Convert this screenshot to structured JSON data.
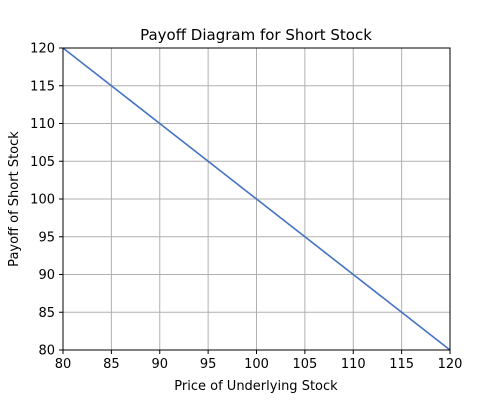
{
  "chart_data": {
    "type": "line",
    "title": "Payoff Diagram for Short Stock",
    "xlabel": "Price of Underlying Stock",
    "ylabel": "Payoff of Short Stock",
    "xlim": [
      80,
      120
    ],
    "ylim": [
      80,
      120
    ],
    "x_ticks": [
      80,
      85,
      90,
      95,
      100,
      105,
      110,
      115,
      120
    ],
    "y_ticks": [
      80,
      85,
      90,
      95,
      100,
      105,
      110,
      115,
      120
    ],
    "grid": true,
    "series": [
      {
        "color": "#4472c4",
        "x": [
          80,
          85,
          90,
          95,
          100,
          105,
          110,
          115,
          120
        ],
        "y": [
          120,
          115,
          110,
          105,
          100,
          95,
          90,
          85,
          80
        ]
      }
    ]
  }
}
